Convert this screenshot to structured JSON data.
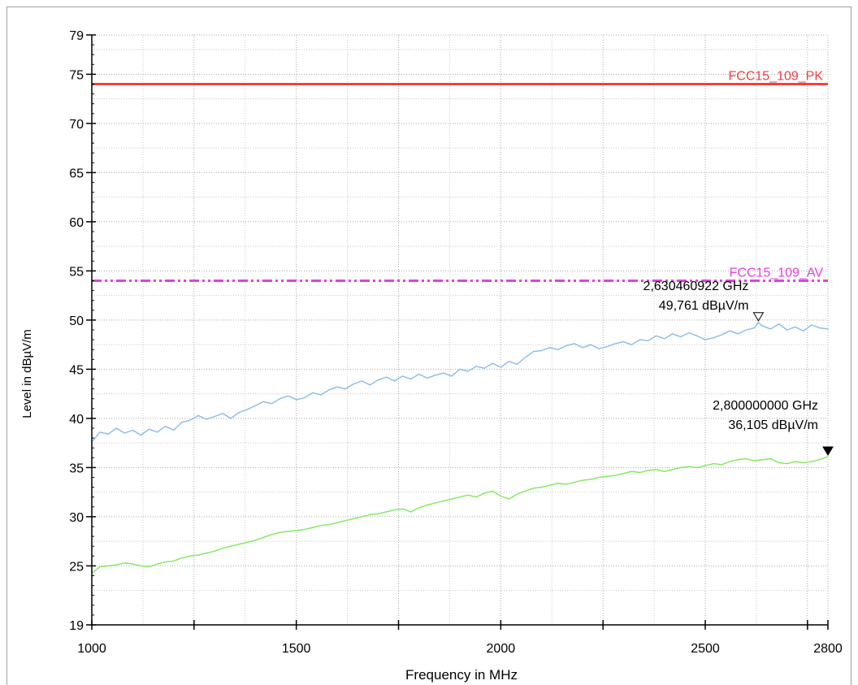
{
  "chart_data": {
    "type": "line",
    "xlabel": "Frequency in MHz",
    "ylabel": "Level in dBµV/m",
    "xlim": [
      1000,
      2800
    ],
    "ylim": [
      19,
      79
    ],
    "x_ticks": [
      1000,
      1500,
      2000,
      2500,
      2800
    ],
    "y_ticks": [
      19,
      25,
      30,
      35,
      40,
      45,
      50,
      55,
      60,
      65,
      70,
      75,
      79
    ],
    "grid": true,
    "limit_lines": [
      {
        "name": "FCC15_109_PK",
        "value": 74,
        "color": "#f04040",
        "style": "solid"
      },
      {
        "name": "FCC15_109_AV",
        "value": 54,
        "color": "#e040e0",
        "style": "dashdot"
      }
    ],
    "series": [
      {
        "color": "#88bbea",
        "x": [
          1000,
          1020,
          1040,
          1060,
          1080,
          1100,
          1120,
          1140,
          1160,
          1180,
          1200,
          1220,
          1240,
          1260,
          1280,
          1300,
          1320,
          1340,
          1360,
          1380,
          1400,
          1420,
          1440,
          1460,
          1480,
          1500,
          1520,
          1540,
          1560,
          1580,
          1600,
          1620,
          1640,
          1660,
          1680,
          1700,
          1720,
          1740,
          1760,
          1780,
          1800,
          1820,
          1840,
          1860,
          1880,
          1900,
          1920,
          1940,
          1960,
          1980,
          2000,
          2020,
          2040,
          2060,
          2080,
          2100,
          2120,
          2140,
          2160,
          2180,
          2200,
          2220,
          2240,
          2260,
          2280,
          2300,
          2320,
          2340,
          2360,
          2380,
          2400,
          2420,
          2440,
          2460,
          2480,
          2500,
          2520,
          2540,
          2560,
          2580,
          2600,
          2620,
          2630,
          2640,
          2660,
          2680,
          2700,
          2720,
          2740,
          2760,
          2780,
          2800
        ],
        "values": [
          37.6,
          38.6,
          38.4,
          39.0,
          38.5,
          38.8,
          38.3,
          38.9,
          38.6,
          39.2,
          38.8,
          39.6,
          39.8,
          40.3,
          39.9,
          40.2,
          40.5,
          40.0,
          40.6,
          40.9,
          41.3,
          41.7,
          41.5,
          42.0,
          42.3,
          41.9,
          42.1,
          42.6,
          42.4,
          42.9,
          43.2,
          43.0,
          43.5,
          43.8,
          43.4,
          43.9,
          44.2,
          43.8,
          44.3,
          44.0,
          44.5,
          44.1,
          44.4,
          44.6,
          44.3,
          45.0,
          44.8,
          45.3,
          45.1,
          45.6,
          45.2,
          45.8,
          45.5,
          46.2,
          46.8,
          46.9,
          47.2,
          47.0,
          47.4,
          47.6,
          47.2,
          47.5,
          47.1,
          47.3,
          47.6,
          47.8,
          47.5,
          48.0,
          47.9,
          48.4,
          48.1,
          48.6,
          48.3,
          48.7,
          48.4,
          48.0,
          48.2,
          48.5,
          48.9,
          48.6,
          49.0,
          49.2,
          49.761,
          49.4,
          49.1,
          49.6,
          49.0,
          49.3,
          48.9,
          49.5,
          49.2,
          49.1
        ]
      },
      {
        "color": "#7ee85a",
        "x": [
          1000,
          1020,
          1040,
          1060,
          1080,
          1100,
          1120,
          1140,
          1160,
          1180,
          1200,
          1220,
          1240,
          1260,
          1280,
          1300,
          1320,
          1340,
          1360,
          1380,
          1400,
          1420,
          1440,
          1460,
          1480,
          1500,
          1520,
          1540,
          1560,
          1580,
          1600,
          1620,
          1640,
          1660,
          1680,
          1700,
          1720,
          1740,
          1760,
          1780,
          1800,
          1820,
          1840,
          1860,
          1880,
          1900,
          1920,
          1940,
          1960,
          1980,
          2000,
          2020,
          2040,
          2060,
          2080,
          2100,
          2120,
          2140,
          2160,
          2180,
          2200,
          2220,
          2240,
          2260,
          2280,
          2300,
          2320,
          2340,
          2360,
          2380,
          2400,
          2420,
          2440,
          2460,
          2480,
          2500,
          2520,
          2540,
          2560,
          2580,
          2600,
          2620,
          2640,
          2660,
          2680,
          2700,
          2720,
          2740,
          2760,
          2780,
          2800
        ],
        "values": [
          24.3,
          24.9,
          25.0,
          25.1,
          25.3,
          25.2,
          25.0,
          24.9,
          25.2,
          25.4,
          25.5,
          25.8,
          26.0,
          26.1,
          26.3,
          26.5,
          26.8,
          27.0,
          27.2,
          27.4,
          27.6,
          27.9,
          28.2,
          28.4,
          28.5,
          28.6,
          28.7,
          28.9,
          29.1,
          29.2,
          29.4,
          29.6,
          29.8,
          30.0,
          30.2,
          30.3,
          30.5,
          30.7,
          30.8,
          30.5,
          30.9,
          31.2,
          31.4,
          31.6,
          31.8,
          32.0,
          32.2,
          32.0,
          32.4,
          32.6,
          32.1,
          31.8,
          32.3,
          32.6,
          32.9,
          33.0,
          33.2,
          33.4,
          33.3,
          33.5,
          33.7,
          33.8,
          34.0,
          34.1,
          34.2,
          34.4,
          34.6,
          34.5,
          34.7,
          34.8,
          34.6,
          34.8,
          35.0,
          35.1,
          35.0,
          35.2,
          35.4,
          35.3,
          35.6,
          35.8,
          35.9,
          35.7,
          35.8,
          35.9,
          35.5,
          35.4,
          35.6,
          35.5,
          35.6,
          35.8,
          36.105
        ]
      }
    ],
    "markers": [
      {
        "freq_label": "2,630460922 GHz",
        "level_label": "49,761 dBµV/m",
        "x": 2630,
        "y": 49.761,
        "filled": false
      },
      {
        "freq_label": "2,800000000 GHz",
        "level_label": "36,105 dBµV/m",
        "x": 2800,
        "y": 36.105,
        "filled": true
      }
    ]
  }
}
